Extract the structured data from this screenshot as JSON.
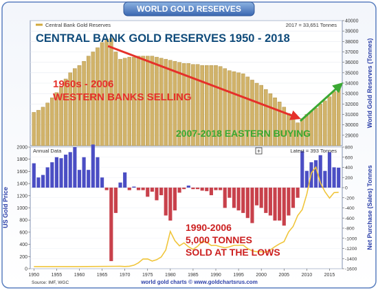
{
  "header": {
    "title": "WORLD GOLD RESERVES"
  },
  "footer": {
    "source": "Source: IMF, WGC",
    "site": "world gold charts © www.goldchartsrus.com"
  },
  "colors": {
    "bar_gold": "#d1b36a",
    "bar_gold_edge": "#a88838",
    "bar_blue": "#4b4ec4",
    "bar_red": "#c8414b",
    "price_line": "#f0c53a",
    "header_grad_top": "#7aa2d8",
    "header_grad_bottom": "#3a66b0",
    "axis_text": "#2b3fa8",
    "headline": "#0e4a7a",
    "west_text": "#e5302a",
    "east_text": "#3aa832",
    "bottom_text": "#cc1f1f"
  },
  "chart_data": [
    {
      "type": "bar",
      "legend": "Central Bank Gold Reserves",
      "headline": "CENTRAL BANK GOLD RESERVES 1950 - 2018",
      "latest_label": "2017 = 33,651 Tonnes",
      "ylabel": "World Gold Reserves (Tonnes)",
      "ylim": [
        28000,
        40000
      ],
      "y_ticks": [
        29000,
        30000,
        31000,
        32000,
        33000,
        34000,
        35000,
        36000,
        37000,
        38000,
        39000,
        40000
      ],
      "y_tick_labels": [
        "29000",
        "30000",
        "31000",
        "32000",
        "33000",
        "34000",
        "35000",
        "36000",
        "37000",
        "38000",
        "39000",
        "40000"
      ],
      "x": [
        1950,
        1951,
        1952,
        1953,
        1954,
        1955,
        1956,
        1957,
        1958,
        1959,
        1960,
        1961,
        1962,
        1963,
        1964,
        1965,
        1966,
        1967,
        1968,
        1969,
        1970,
        1971,
        1972,
        1973,
        1974,
        1975,
        1976,
        1977,
        1978,
        1979,
        1980,
        1981,
        1982,
        1983,
        1984,
        1985,
        1986,
        1987,
        1988,
        1989,
        1990,
        1991,
        1992,
        1993,
        1994,
        1995,
        1996,
        1997,
        1998,
        1999,
        2000,
        2001,
        2002,
        2003,
        2004,
        2005,
        2006,
        2007,
        2008,
        2009,
        2010,
        2011,
        2012,
        2013,
        2014,
        2015,
        2016,
        2017
      ],
      "values": [
        31200,
        31400,
        31700,
        32100,
        32600,
        33100,
        33700,
        34400,
        35000,
        35400,
        35700,
        36100,
        36600,
        37000,
        37400,
        37900,
        38200,
        38300,
        37000,
        36300,
        36400,
        36500,
        36500,
        36600,
        36600,
        36600,
        36600,
        36500,
        36400,
        36300,
        36200,
        36100,
        36000,
        35900,
        35900,
        35800,
        35800,
        35700,
        35700,
        35700,
        35700,
        35600,
        35400,
        35200,
        35100,
        35000,
        34900,
        34600,
        34300,
        34000,
        33800,
        33400,
        33000,
        32600,
        32200,
        31700,
        31100,
        30600,
        30200,
        30600,
        31000,
        31300,
        31600,
        32000,
        32300,
        32700,
        33200,
        33651
      ],
      "annotations": {
        "west_line1": "1960s - 2006",
        "west_line2": "WESTERN BANKS SELLING",
        "east": "2007-2018 EASTERN BUYING"
      }
    },
    {
      "type": "bar",
      "subtitle": "Annual Data",
      "plus_symbol": "+",
      "latest_label": "Latest = 393 Tonnes",
      "ylabel": "Net Purchase (Sales) Tonnes",
      "ylim": [
        -1600,
        800
      ],
      "y_ticks": [
        800,
        600,
        400,
        200,
        0,
        -200,
        -400,
        -600,
        -800,
        -1000,
        -1200,
        -1400,
        -1600
      ],
      "y_tick_labels": [
        "800",
        "600",
        "400",
        "200",
        "0",
        "-200",
        "-400",
        "-600",
        "-800",
        "-1000",
        "-1200",
        "-1400",
        "-1600"
      ],
      "x_ticks": [
        1950,
        1955,
        1960,
        1965,
        1970,
        1975,
        1980,
        1985,
        1990,
        1995,
        2000,
        2005,
        2010,
        2015
      ],
      "x_tick_labels": [
        "1950",
        "1955",
        "1960",
        "1965",
        "1970",
        "1975",
        "1980",
        "1985",
        "1990",
        "1995",
        "2000",
        "2005",
        "2010",
        "2015"
      ],
      "x": [
        1950,
        1951,
        1952,
        1953,
        1954,
        1955,
        1956,
        1957,
        1958,
        1959,
        1960,
        1961,
        1962,
        1963,
        1964,
        1965,
        1966,
        1967,
        1968,
        1969,
        1970,
        1971,
        1972,
        1973,
        1974,
        1975,
        1976,
        1977,
        1978,
        1979,
        1980,
        1981,
        1982,
        1983,
        1984,
        1985,
        1986,
        1987,
        1988,
        1989,
        1990,
        1991,
        1992,
        1993,
        1994,
        1995,
        1996,
        1997,
        1998,
        1999,
        2000,
        2001,
        2002,
        2003,
        2004,
        2005,
        2006,
        2007,
        2008,
        2009,
        2010,
        2011,
        2012,
        2013,
        2014,
        2015,
        2016,
        2017
      ],
      "values": [
        480,
        200,
        250,
        400,
        500,
        600,
        580,
        650,
        700,
        800,
        350,
        600,
        350,
        850,
        600,
        200,
        -50,
        -1450,
        -500,
        100,
        300,
        -50,
        20,
        -50,
        -50,
        -180,
        -80,
        -250,
        -150,
        -550,
        -650,
        -450,
        -100,
        -30,
        40,
        -30,
        -30,
        -60,
        -70,
        -150,
        -50,
        -50,
        -400,
        -200,
        -400,
        -450,
        -500,
        -600,
        -700,
        -350,
        -400,
        -500,
        -550,
        -650,
        -650,
        -750,
        -550,
        -400,
        -200,
        720,
        330,
        500,
        540,
        640,
        330,
        700,
        400,
        393
      ],
      "price_series": {
        "name": "US Gold Price",
        "ylim": [
          0,
          2000
        ],
        "y_ticks": [
          0,
          200,
          400,
          600,
          800,
          1000,
          1200,
          1400,
          1600,
          1800,
          2000
        ],
        "y_tick_labels": [
          "0",
          "200",
          "400",
          "600",
          "800",
          "1000",
          "1200",
          "1400",
          "1600",
          "1800",
          "2000"
        ],
        "x": [
          1950,
          1960,
          1968,
          1969,
          1970,
          1971,
          1972,
          1973,
          1974,
          1975,
          1976,
          1977,
          1978,
          1979,
          1980,
          1981,
          1982,
          1983,
          1984,
          1985,
          1986,
          1987,
          1988,
          1989,
          1990,
          1991,
          1992,
          1993,
          1994,
          1995,
          1996,
          1997,
          1998,
          1999,
          2000,
          2001,
          2002,
          2003,
          2004,
          2005,
          2006,
          2007,
          2008,
          2009,
          2010,
          2011,
          2012,
          2013,
          2014,
          2015,
          2016,
          2017
        ],
        "values": [
          35,
          35,
          39,
          41,
          36,
          41,
          58,
          97,
          159,
          161,
          125,
          148,
          193,
          307,
          612,
          460,
          376,
          424,
          361,
          317,
          368,
          447,
          437,
          381,
          384,
          362,
          344,
          360,
          384,
          384,
          388,
          331,
          294,
          279,
          279,
          271,
          310,
          363,
          409,
          445,
          604,
          695,
          872,
          972,
          1225,
          1572,
          1669,
          1411,
          1266,
          1160,
          1251,
          1257
        ]
      },
      "annotations": {
        "line1": "1990-2006",
        "line2": "5,000 TONNES",
        "line3": "SOLD AT THE LOWS"
      }
    }
  ]
}
